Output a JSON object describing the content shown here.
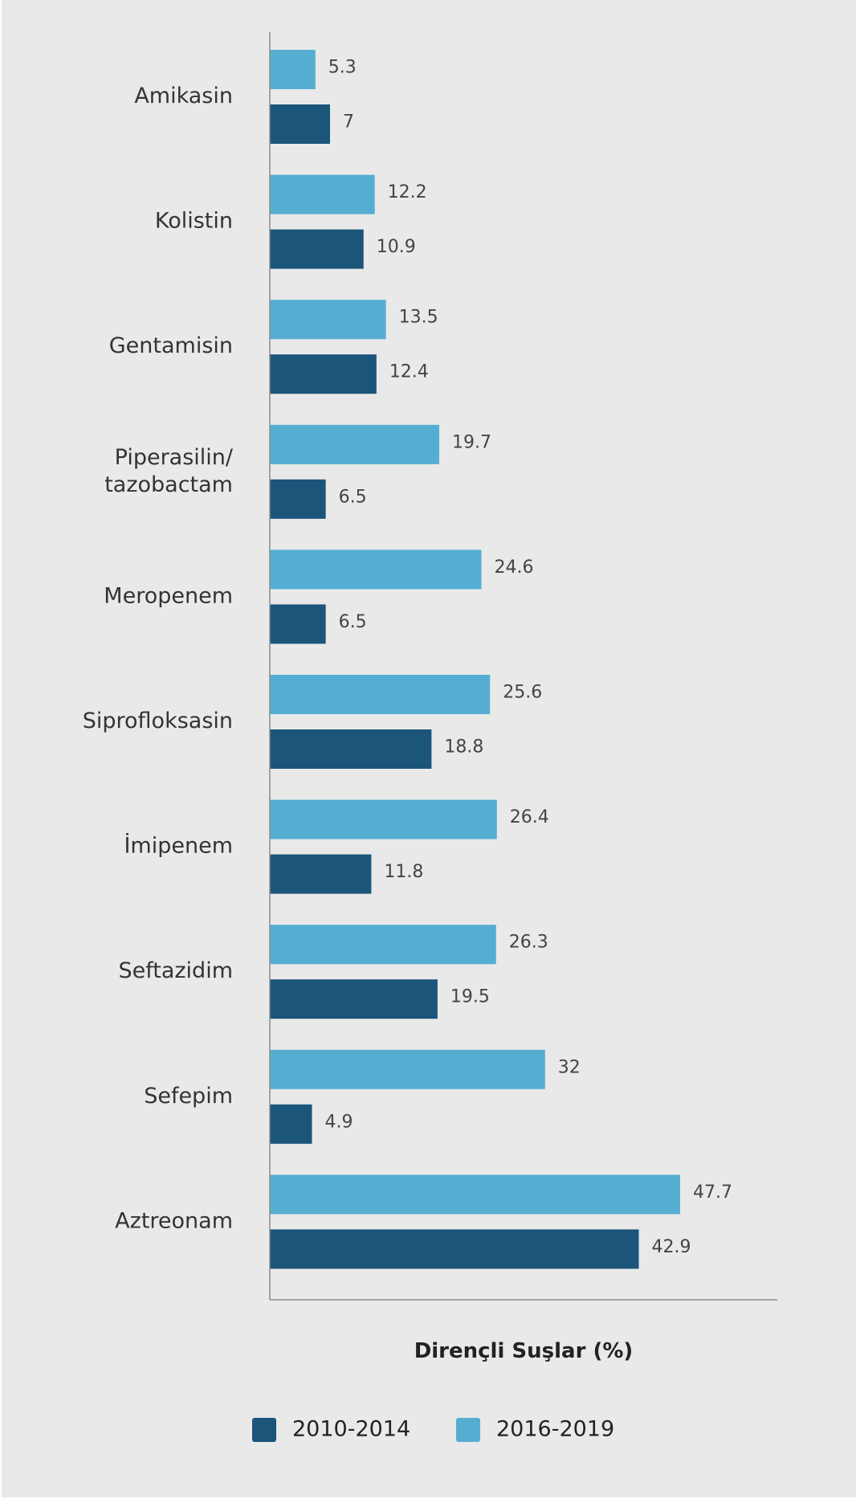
{
  "colors": {
    "background": "#e9e9e9",
    "series_2010_2014": "#1b557a",
    "series_2016_2019": "#55aed2",
    "axis": "#8a8a8a"
  },
  "chart_data": {
    "type": "bar",
    "orientation": "horizontal",
    "xlabel": "Dirençli Suşlar (%)",
    "categories": [
      [
        "Amikasin"
      ],
      [
        "Kolistin"
      ],
      [
        "Gentamisin"
      ],
      [
        "Piperasilin/",
        "tazobactam"
      ],
      [
        "Meropenem"
      ],
      [
        "Siprofloksasin"
      ],
      [
        "İmipenem"
      ],
      [
        "Seftazidim"
      ],
      [
        "Sefepim"
      ],
      [
        "Aztreonam"
      ]
    ],
    "series": [
      {
        "name": "2016-2019",
        "color": "#55aed2",
        "values": [
          5.3,
          12.2,
          13.5,
          19.7,
          24.6,
          25.6,
          26.4,
          26.3,
          32,
          47.7
        ],
        "labels": [
          "5.3",
          "12.2",
          "13.5",
          "19.7",
          "24.6",
          "25.6",
          "26.4",
          "26.3",
          "32",
          "47.7"
        ]
      },
      {
        "name": "2010-2014",
        "color": "#1b557a",
        "values": [
          7,
          10.9,
          12.4,
          6.5,
          6.5,
          18.8,
          11.8,
          19.5,
          4.9,
          42.9
        ],
        "labels": [
          "7",
          "10.9",
          "12.4",
          "6.5",
          "6.5",
          "18.8",
          "11.8",
          "19.5",
          "4.9",
          "42.9"
        ]
      }
    ],
    "xlim": [
      0,
      59
    ],
    "grid": false,
    "legend": {
      "position": "bottom",
      "order": [
        "2010-2014",
        "2016-2019"
      ]
    }
  }
}
